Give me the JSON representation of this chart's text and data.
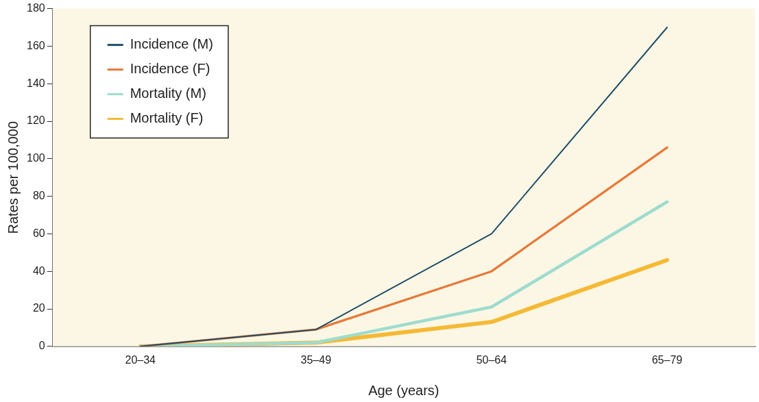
{
  "chart_data": {
    "type": "line",
    "xlabel": "Age (years)",
    "ylabel": "Rates per 100,000",
    "categories": [
      "20–34",
      "35–49",
      "50–64",
      "65–79"
    ],
    "series": [
      {
        "name": "Incidence (M)",
        "color": "#1f4e6b",
        "values": [
          0,
          9,
          60,
          170
        ]
      },
      {
        "name": "Incidence (F)",
        "color": "#e8783a",
        "values": [
          0,
          9,
          40,
          106
        ]
      },
      {
        "name": "Mortality (M)",
        "color": "#9edccf",
        "values": [
          0,
          2,
          21,
          77
        ]
      },
      {
        "name": "Mortality (F)",
        "color": "#f5b935",
        "values": [
          0,
          2,
          13,
          46
        ]
      }
    ],
    "ylim": [
      0,
      180
    ],
    "yticks": [
      0,
      20,
      40,
      60,
      80,
      100,
      120,
      140,
      160,
      180
    ],
    "grid": false,
    "legend": "top left",
    "marker": "none",
    "line_style": "solid"
  }
}
